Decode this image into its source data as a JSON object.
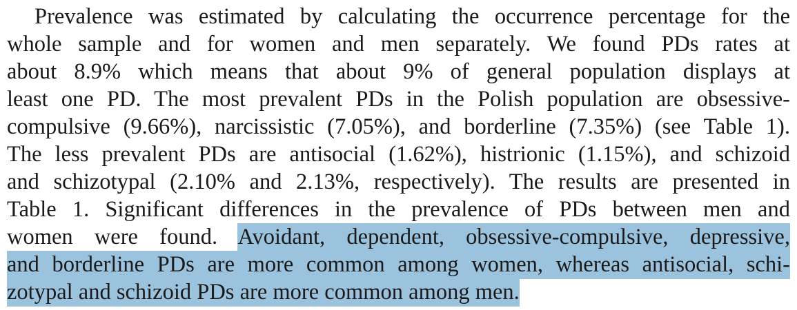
{
  "paragraph": {
    "lines": [
      {
        "pre": "Prevalence was estimated by calculating the occurrence percentage for the",
        "hl": ""
      },
      {
        "pre": "whole sample and for women and men separately. We found PDs rates at",
        "hl": ""
      },
      {
        "pre": "about 8.9% which means that about 9% of general population displays at",
        "hl": ""
      },
      {
        "pre": "least one PD. The most prevalent PDs in the Polish population are obsessive-",
        "hl": ""
      },
      {
        "pre": "compulsive (9.66%), narcissistic (7.05%), and borderline (7.35%) (see Table 1).",
        "hl": ""
      },
      {
        "pre": "The less prevalent PDs are antisocial (1.62%), histrionic (1.15%), and schizoid",
        "hl": ""
      },
      {
        "pre": "and schizotypal (2.10% and 2.13%, respectively). The results are presented in",
        "hl": ""
      },
      {
        "pre": "Table 1. Significant differences in the prevalence of PDs between men and",
        "hl": ""
      },
      {
        "pre": "women were found. ",
        "hl": "Avoidant, dependent, obsessive-compulsive, depressive,"
      },
      {
        "pre": "",
        "hl": "and borderline PDs are more common among women, whereas antisocial, schi-"
      },
      {
        "pre": "",
        "hl": "zotypal and schizoid PDs are more common among men."
      }
    ]
  },
  "colors": {
    "highlight": "#9cc3de",
    "text": "#1a1a1a"
  }
}
